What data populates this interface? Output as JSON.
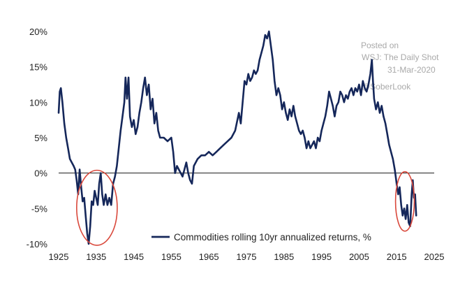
{
  "watermark": {
    "line1": "Posted on",
    "line2": "WSJ: The Daily Shot",
    "line3": "31-Mar-2020",
    "line4": "@SoberLook"
  },
  "colors": {
    "series": "#15275a",
    "highlight_circle": "#d9483b",
    "zero_line": "#1a1a1a"
  },
  "chart_data": {
    "type": "line",
    "title": "",
    "xlabel": "",
    "ylabel": "",
    "xlim": [
      1925,
      2025
    ],
    "ylim": [
      -10,
      20
    ],
    "x_ticks": [
      "1925",
      "1935",
      "1945",
      "1955",
      "1965",
      "1975",
      "1985",
      "1995",
      "2005",
      "2015",
      "2025"
    ],
    "y_ticks": [
      "20%",
      "15%",
      "10%",
      "5%",
      "0%",
      "-5%",
      "-10%"
    ],
    "y_tick_values": [
      20,
      15,
      10,
      5,
      0,
      -5,
      -10
    ],
    "x_tick_values": [
      1925,
      1935,
      1945,
      1955,
      1965,
      1975,
      1985,
      1995,
      2005,
      2015,
      2025
    ],
    "legend": {
      "placement": "bottom-center"
    },
    "highlights": [
      {
        "x_center": 1935.2,
        "y_center": -4.9,
        "x_radius": 5.4,
        "y_radius": 5.3
      },
      {
        "x_center": 2017.2,
        "y_center": -4.0,
        "x_radius": 2.5,
        "y_radius": 4.2
      }
    ],
    "series": [
      {
        "name": "Commodities rolling 10yr annualized returns, %",
        "points": [
          [
            1925.0,
            8.5
          ],
          [
            1925.3,
            11.5
          ],
          [
            1925.6,
            12.0
          ],
          [
            1926.0,
            10.0
          ],
          [
            1926.5,
            7.0
          ],
          [
            1927.0,
            5.0
          ],
          [
            1927.5,
            3.5
          ],
          [
            1928.0,
            2.0
          ],
          [
            1928.5,
            1.5
          ],
          [
            1929.0,
            1.0
          ],
          [
            1929.4,
            0.5
          ],
          [
            1929.8,
            -1.0
          ],
          [
            1930.2,
            -3.0
          ],
          [
            1930.6,
            0.5
          ],
          [
            1931.0,
            -2.0
          ],
          [
            1931.4,
            -4.0
          ],
          [
            1931.8,
            -3.5
          ],
          [
            1932.2,
            -6.0
          ],
          [
            1932.6,
            -8.5
          ],
          [
            1933.0,
            -10.0
          ],
          [
            1933.4,
            -7.5
          ],
          [
            1933.8,
            -4.0
          ],
          [
            1934.2,
            -4.5
          ],
          [
            1934.6,
            -2.5
          ],
          [
            1935.0,
            -3.5
          ],
          [
            1935.4,
            -4.5
          ],
          [
            1935.8,
            -1.5
          ],
          [
            1936.2,
            0.0
          ],
          [
            1936.6,
            -3.0
          ],
          [
            1937.0,
            -4.5
          ],
          [
            1937.5,
            -3.0
          ],
          [
            1938.0,
            -4.5
          ],
          [
            1938.5,
            -3.5
          ],
          [
            1939.0,
            -4.5
          ],
          [
            1939.5,
            -1.5
          ],
          [
            1940.0,
            -0.5
          ],
          [
            1940.5,
            1.0
          ],
          [
            1941.0,
            3.5
          ],
          [
            1941.5,
            6.0
          ],
          [
            1942.0,
            8.0
          ],
          [
            1942.5,
            10.0
          ],
          [
            1942.8,
            13.5
          ],
          [
            1943.2,
            10.5
          ],
          [
            1943.6,
            13.5
          ],
          [
            1944.0,
            8.0
          ],
          [
            1944.5,
            6.5
          ],
          [
            1945.0,
            7.5
          ],
          [
            1945.5,
            5.5
          ],
          [
            1946.0,
            6.5
          ],
          [
            1946.5,
            8.5
          ],
          [
            1947.0,
            10.0
          ],
          [
            1947.5,
            12.0
          ],
          [
            1948.0,
            13.5
          ],
          [
            1948.5,
            11.0
          ],
          [
            1949.0,
            12.5
          ],
          [
            1949.5,
            9.0
          ],
          [
            1950.0,
            10.5
          ],
          [
            1950.5,
            7.0
          ],
          [
            1951.0,
            8.5
          ],
          [
            1951.5,
            6.0
          ],
          [
            1952.0,
            5.0
          ],
          [
            1953.0,
            5.0
          ],
          [
            1954.0,
            4.5
          ],
          [
            1955.0,
            5.0
          ],
          [
            1955.5,
            3.0
          ],
          [
            1956.0,
            0.0
          ],
          [
            1956.5,
            1.0
          ],
          [
            1957.0,
            0.5
          ],
          [
            1957.5,
            0.0
          ],
          [
            1958.0,
            -0.5
          ],
          [
            1958.5,
            0.5
          ],
          [
            1959.0,
            1.5
          ],
          [
            1959.5,
            0.0
          ],
          [
            1960.0,
            -1.0
          ],
          [
            1960.5,
            -1.5
          ],
          [
            1961.0,
            1.0
          ],
          [
            1962.0,
            2.0
          ],
          [
            1963.0,
            2.5
          ],
          [
            1964.0,
            2.5
          ],
          [
            1965.0,
            3.0
          ],
          [
            1966.0,
            2.5
          ],
          [
            1967.0,
            3.0
          ],
          [
            1968.0,
            3.5
          ],
          [
            1969.0,
            4.0
          ],
          [
            1970.0,
            4.5
          ],
          [
            1971.0,
            5.0
          ],
          [
            1972.0,
            6.0
          ],
          [
            1973.0,
            8.5
          ],
          [
            1973.5,
            7.0
          ],
          [
            1974.0,
            10.0
          ],
          [
            1974.5,
            13.0
          ],
          [
            1975.0,
            12.5
          ],
          [
            1975.5,
            14.0
          ],
          [
            1976.0,
            13.0
          ],
          [
            1976.5,
            13.5
          ],
          [
            1977.0,
            14.5
          ],
          [
            1977.5,
            14.0
          ],
          [
            1978.0,
            14.5
          ],
          [
            1978.5,
            16.0
          ],
          [
            1979.0,
            17.0
          ],
          [
            1979.5,
            18.0
          ],
          [
            1980.0,
            19.5
          ],
          [
            1980.5,
            19.0
          ],
          [
            1981.0,
            20.0
          ],
          [
            1981.5,
            18.0
          ],
          [
            1982.0,
            16.0
          ],
          [
            1982.5,
            13.0
          ],
          [
            1983.0,
            11.0
          ],
          [
            1983.5,
            12.0
          ],
          [
            1984.0,
            11.0
          ],
          [
            1984.5,
            9.0
          ],
          [
            1985.0,
            10.0
          ],
          [
            1985.5,
            8.5
          ],
          [
            1986.0,
            7.5
          ],
          [
            1986.5,
            9.0
          ],
          [
            1987.0,
            8.0
          ],
          [
            1987.5,
            9.5
          ],
          [
            1988.0,
            8.0
          ],
          [
            1988.5,
            7.0
          ],
          [
            1989.0,
            6.0
          ],
          [
            1989.5,
            5.5
          ],
          [
            1990.0,
            6.0
          ],
          [
            1990.5,
            5.0
          ],
          [
            1991.0,
            3.5
          ],
          [
            1991.5,
            4.5
          ],
          [
            1992.0,
            3.5
          ],
          [
            1992.5,
            4.0
          ],
          [
            1993.0,
            4.5
          ],
          [
            1993.5,
            3.5
          ],
          [
            1994.0,
            5.0
          ],
          [
            1994.5,
            4.5
          ],
          [
            1995.0,
            6.0
          ],
          [
            1995.5,
            7.0
          ],
          [
            1996.0,
            8.0
          ],
          [
            1996.5,
            9.5
          ],
          [
            1997.0,
            11.5
          ],
          [
            1997.5,
            10.5
          ],
          [
            1998.0,
            9.5
          ],
          [
            1998.5,
            8.0
          ],
          [
            1999.0,
            9.5
          ],
          [
            1999.5,
            10.0
          ],
          [
            2000.0,
            11.5
          ],
          [
            2000.5,
            11.0
          ],
          [
            2001.0,
            10.0
          ],
          [
            2001.5,
            11.0
          ],
          [
            2002.0,
            10.5
          ],
          [
            2002.5,
            11.5
          ],
          [
            2003.0,
            12.0
          ],
          [
            2003.5,
            11.0
          ],
          [
            2004.0,
            12.0
          ],
          [
            2004.5,
            11.5
          ],
          [
            2005.0,
            12.5
          ],
          [
            2005.5,
            11.0
          ],
          [
            2006.0,
            13.0
          ],
          [
            2006.5,
            12.0
          ],
          [
            2007.0,
            11.5
          ],
          [
            2007.5,
            12.5
          ],
          [
            2008.0,
            14.0
          ],
          [
            2008.4,
            16.0
          ],
          [
            2008.7,
            13.0
          ],
          [
            2009.0,
            10.5
          ],
          [
            2009.5,
            9.0
          ],
          [
            2010.0,
            10.0
          ],
          [
            2010.5,
            8.5
          ],
          [
            2011.0,
            9.5
          ],
          [
            2011.5,
            8.0
          ],
          [
            2012.0,
            7.0
          ],
          [
            2012.5,
            5.5
          ],
          [
            2013.0,
            4.0
          ],
          [
            2013.5,
            3.0
          ],
          [
            2014.0,
            2.0
          ],
          [
            2014.5,
            0.5
          ],
          [
            2015.0,
            -1.5
          ],
          [
            2015.4,
            -3.0
          ],
          [
            2015.8,
            -2.0
          ],
          [
            2016.2,
            -4.5
          ],
          [
            2016.6,
            -6.0
          ],
          [
            2017.0,
            -5.0
          ],
          [
            2017.4,
            -6.5
          ],
          [
            2017.8,
            -4.5
          ],
          [
            2018.2,
            -7.0
          ],
          [
            2018.6,
            -7.5
          ],
          [
            2019.0,
            -3.0
          ],
          [
            2019.3,
            -1.0
          ],
          [
            2019.6,
            -3.5
          ],
          [
            2019.9,
            -3.0
          ],
          [
            2020.2,
            -6.0
          ]
        ]
      }
    ]
  }
}
